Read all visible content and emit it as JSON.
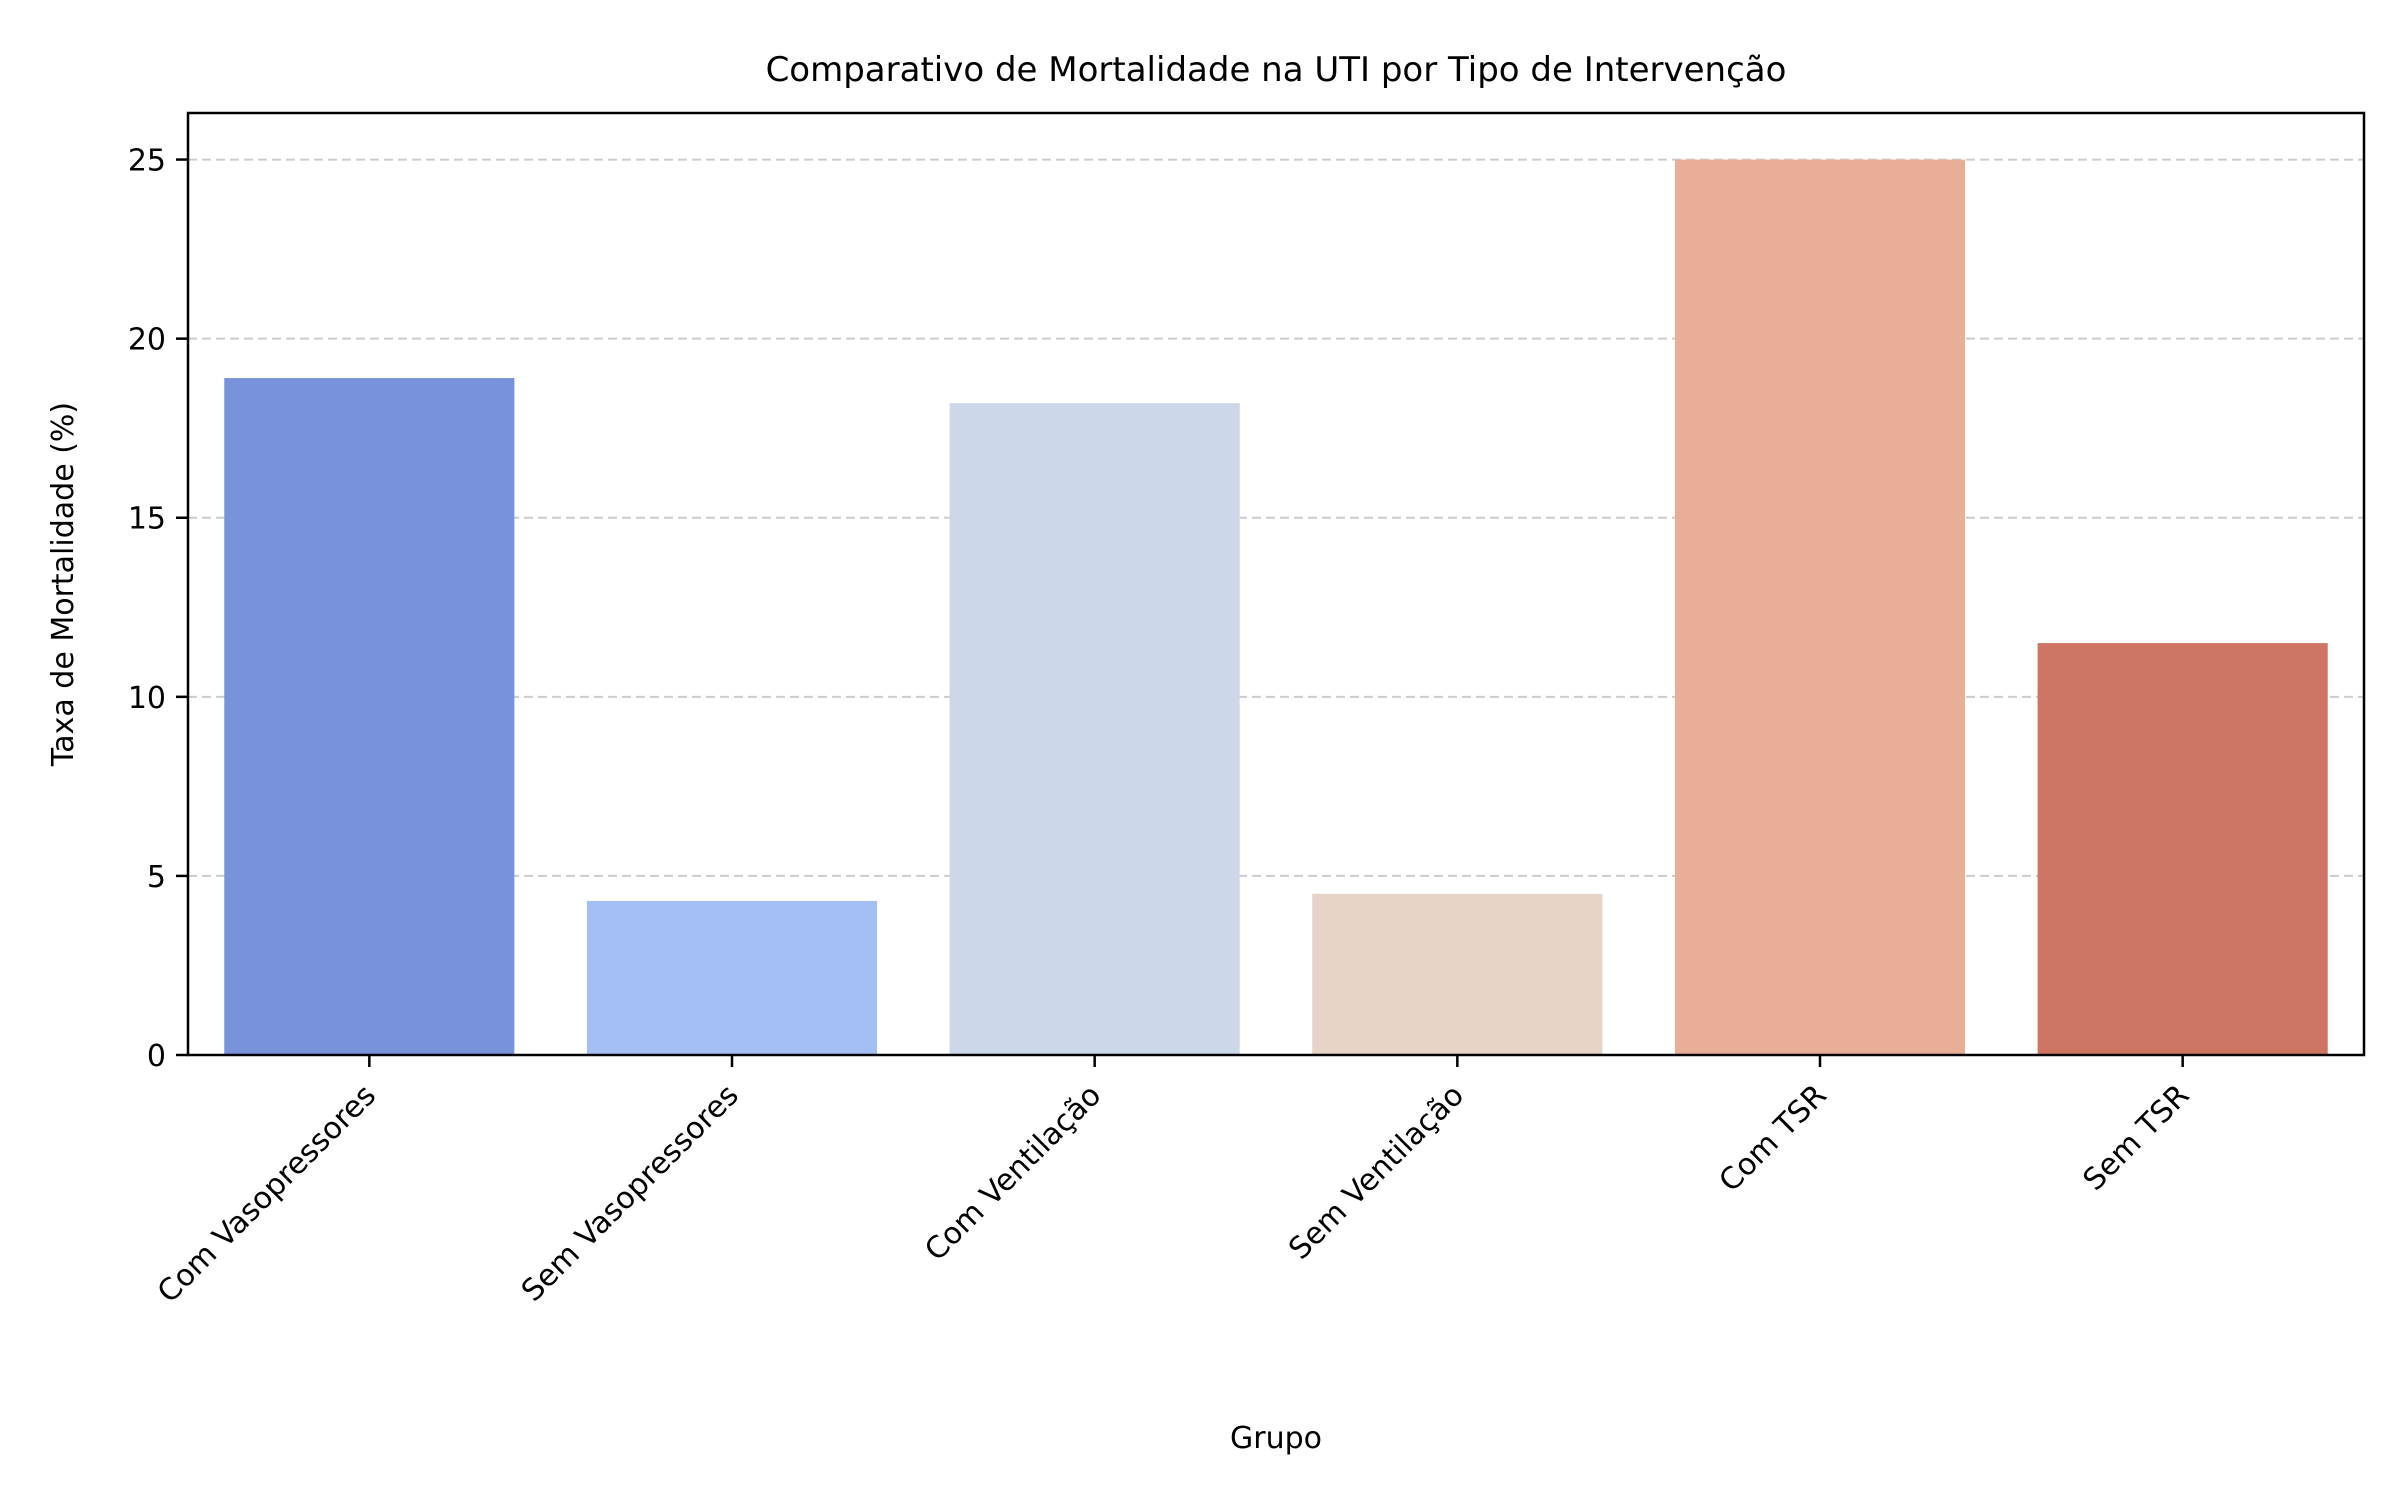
{
  "chart_data": {
    "type": "bar",
    "title": "Comparativo de Mortalidade na UTI por Tipo de Intervenção",
    "xlabel": "Grupo",
    "ylabel": "Taxa de Mortalidade (%)",
    "categories": [
      "Com Vasopressores",
      "Sem Vasopressores",
      "Com Ventilação",
      "Sem Ventilação",
      "Com TSR",
      "Sem TSR"
    ],
    "values": [
      18.9,
      4.3,
      18.2,
      4.5,
      25.0,
      11.5
    ],
    "colors": [
      "#7892dc",
      "#a4bff3",
      "#ccd8ea",
      "#e8d3c8",
      "#e9ae97",
      "#cf7563"
    ],
    "yticks": [
      0,
      5,
      10,
      15,
      20,
      25
    ],
    "ylim": [
      0,
      26.3
    ],
    "grid": "y-dashed",
    "legend": "none"
  }
}
